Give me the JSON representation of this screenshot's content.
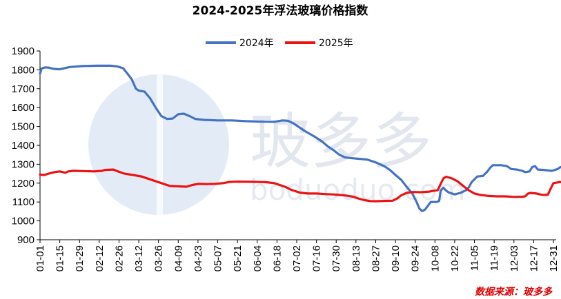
{
  "source_label": "数据来源：玻多多",
  "watermark": {
    "logo_text": "玻多多",
    "url_text": "boduoduo.com"
  },
  "chart_data": {
    "type": "line",
    "title": "2024-2025年浮法玻璃价格指数",
    "xlabel": "",
    "ylabel": "",
    "ylim": [
      900,
      1900
    ],
    "yticks": [
      900,
      1000,
      1100,
      1200,
      1300,
      1400,
      1500,
      1600,
      1700,
      1800,
      1900
    ],
    "xticks": [
      "01-01",
      "01-15",
      "01-29",
      "02-12",
      "02-26",
      "03-12",
      "03-26",
      "04-09",
      "04-23",
      "05-07",
      "05-21",
      "06-04",
      "06-18",
      "07-02",
      "07-16",
      "07-30",
      "08-13",
      "08-27",
      "09-10",
      "09-24",
      "10-08",
      "10-22",
      "11-05",
      "11-19",
      "12-03",
      "12-17",
      "12-31"
    ],
    "grid": false,
    "legend_position": "top-center",
    "colors": {
      "2024": "#4472c4",
      "2025": "#ee1111"
    },
    "series": [
      {
        "name": "2024年",
        "points": [
          [
            0,
            1780
          ],
          [
            1,
            1805
          ],
          [
            2,
            1810
          ],
          [
            4,
            1813
          ],
          [
            6,
            1812
          ],
          [
            8,
            1808
          ],
          [
            10,
            1805
          ],
          [
            14,
            1803
          ],
          [
            18,
            1810
          ],
          [
            21,
            1815
          ],
          [
            30,
            1820
          ],
          [
            40,
            1822
          ],
          [
            50,
            1822
          ],
          [
            55,
            1818
          ],
          [
            59,
            1808
          ],
          [
            62,
            1780
          ],
          [
            65,
            1750
          ],
          [
            68,
            1700
          ],
          [
            70,
            1690
          ],
          [
            74,
            1685
          ],
          [
            78,
            1650
          ],
          [
            82,
            1600
          ],
          [
            86,
            1555
          ],
          [
            90,
            1540
          ],
          [
            94,
            1542
          ],
          [
            98,
            1565
          ],
          [
            102,
            1568
          ],
          [
            106,
            1555
          ],
          [
            110,
            1540
          ],
          [
            116,
            1535
          ],
          [
            126,
            1532
          ],
          [
            136,
            1532
          ],
          [
            146,
            1528
          ],
          [
            156,
            1526
          ],
          [
            166,
            1525
          ],
          [
            172,
            1532
          ],
          [
            176,
            1530
          ],
          [
            180,
            1515
          ],
          [
            184,
            1495
          ],
          [
            188,
            1475
          ],
          [
            192,
            1458
          ],
          [
            196,
            1440
          ],
          [
            200,
            1420
          ],
          [
            204,
            1395
          ],
          [
            208,
            1375
          ],
          [
            212,
            1352
          ],
          [
            216,
            1337
          ],
          [
            220,
            1333
          ],
          [
            226,
            1329
          ],
          [
            232,
            1325
          ],
          [
            238,
            1310
          ],
          [
            244,
            1290
          ],
          [
            248,
            1270
          ],
          [
            252,
            1243
          ],
          [
            256,
            1218
          ],
          [
            260,
            1180
          ],
          [
            264,
            1145
          ],
          [
            267,
            1100
          ],
          [
            269,
            1065
          ],
          [
            271,
            1052
          ],
          [
            273,
            1060
          ],
          [
            275,
            1080
          ],
          [
            277,
            1100
          ],
          [
            281,
            1100
          ],
          [
            283,
            1105
          ],
          [
            284,
            1160
          ],
          [
            286,
            1175
          ],
          [
            288,
            1160
          ],
          [
            290,
            1150
          ],
          [
            294,
            1140
          ],
          [
            298,
            1148
          ],
          [
            302,
            1162
          ],
          [
            304,
            1178
          ],
          [
            306,
            1205
          ],
          [
            308,
            1220
          ],
          [
            310,
            1235
          ],
          [
            314,
            1238
          ],
          [
            317,
            1260
          ],
          [
            319,
            1280
          ],
          [
            321,
            1295
          ],
          [
            327,
            1295
          ],
          [
            331,
            1290
          ],
          [
            334,
            1275
          ],
          [
            338,
            1272
          ],
          [
            342,
            1265
          ],
          [
            344,
            1258
          ],
          [
            347,
            1262
          ],
          [
            349,
            1285
          ],
          [
            351,
            1290
          ],
          [
            353,
            1272
          ],
          [
            357,
            1270
          ],
          [
            363,
            1265
          ],
          [
            367,
            1275
          ],
          [
            369,
            1285
          ],
          [
            372,
            1281
          ],
          [
            375,
            1275
          ],
          [
            377,
            1270
          ],
          [
            379,
            1258
          ],
          [
            381,
            1255
          ]
        ]
      },
      {
        "name": "2025年",
        "points": [
          [
            0,
            1245
          ],
          [
            3,
            1243
          ],
          [
            6,
            1250
          ],
          [
            10,
            1258
          ],
          [
            14,
            1262
          ],
          [
            18,
            1255
          ],
          [
            20,
            1262
          ],
          [
            24,
            1265
          ],
          [
            30,
            1264
          ],
          [
            38,
            1262
          ],
          [
            44,
            1265
          ],
          [
            46,
            1270
          ],
          [
            52,
            1272
          ],
          [
            56,
            1260
          ],
          [
            60,
            1250
          ],
          [
            66,
            1243
          ],
          [
            72,
            1235
          ],
          [
            78,
            1220
          ],
          [
            84,
            1205
          ],
          [
            88,
            1195
          ],
          [
            92,
            1185
          ],
          [
            98,
            1183
          ],
          [
            104,
            1181
          ],
          [
            108,
            1190
          ],
          [
            112,
            1196
          ],
          [
            118,
            1195
          ],
          [
            124,
            1196
          ],
          [
            130,
            1200
          ],
          [
            134,
            1206
          ],
          [
            140,
            1208
          ],
          [
            150,
            1207
          ],
          [
            160,
            1205
          ],
          [
            166,
            1200
          ],
          [
            170,
            1190
          ],
          [
            174,
            1180
          ],
          [
            178,
            1165
          ],
          [
            184,
            1150
          ],
          [
            190,
            1145
          ],
          [
            196,
            1145
          ],
          [
            202,
            1142
          ],
          [
            208,
            1140
          ],
          [
            216,
            1135
          ],
          [
            222,
            1128
          ],
          [
            226,
            1118
          ],
          [
            230,
            1110
          ],
          [
            234,
            1105
          ],
          [
            238,
            1104
          ],
          [
            244,
            1106
          ],
          [
            250,
            1107
          ],
          [
            253,
            1118
          ],
          [
            256,
            1135
          ],
          [
            260,
            1148
          ],
          [
            264,
            1153
          ],
          [
            270,
            1152
          ],
          [
            276,
            1155
          ],
          [
            282,
            1163
          ],
          [
            284,
            1195
          ],
          [
            286,
            1225
          ],
          [
            288,
            1234
          ],
          [
            292,
            1225
          ],
          [
            296,
            1210
          ],
          [
            300,
            1185
          ],
          [
            304,
            1162
          ],
          [
            308,
            1145
          ],
          [
            312,
            1138
          ],
          [
            318,
            1132
          ],
          [
            324,
            1130
          ],
          [
            330,
            1130
          ],
          [
            336,
            1127
          ],
          [
            342,
            1128
          ],
          [
            344,
            1130
          ],
          [
            346,
            1145
          ],
          [
            348,
            1148
          ],
          [
            352,
            1145
          ],
          [
            356,
            1138
          ],
          [
            360,
            1138
          ],
          [
            362,
            1170
          ],
          [
            364,
            1200
          ],
          [
            368,
            1205
          ],
          [
            374,
            1206
          ],
          [
            380,
            1208
          ],
          [
            384,
            1210
          ],
          [
            388,
            1200
          ],
          [
            390,
            1195
          ],
          [
            392,
            1218
          ],
          [
            394,
            1205
          ],
          [
            396,
            1190
          ],
          [
            398,
            1178
          ],
          [
            400,
            1172
          ]
        ]
      }
    ]
  }
}
